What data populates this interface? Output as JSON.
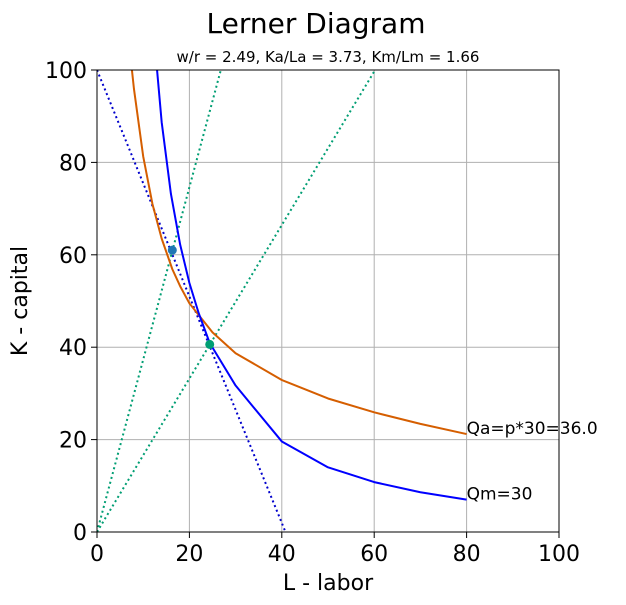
{
  "chart_data": {
    "type": "line",
    "title": "Lerner Diagram",
    "subtitle": "w/r = 2.49,   Ka/La = 3.73,   Km/Lm = 1.66",
    "xlabel": "L - labor",
    "ylabel": "K - capital",
    "xlim": [
      0,
      100
    ],
    "ylim": [
      0,
      100
    ],
    "xticks": [
      0,
      20,
      40,
      60,
      80,
      100
    ],
    "yticks": [
      0,
      20,
      40,
      60,
      80,
      100
    ],
    "grid": true,
    "series": [
      {
        "name": "Qa=p*30=36.0",
        "style": "solid",
        "color": "#d55e00",
        "x": [
          7.56,
          8,
          10,
          12,
          14,
          16.3,
          18,
          20,
          25,
          30,
          40,
          50,
          60,
          70,
          80
        ],
        "y": [
          100,
          95.9,
          81.3,
          71.0,
          63.5,
          56.9,
          53.2,
          49.5,
          43.2,
          38.7,
          32.9,
          28.9,
          25.9,
          23.4,
          21.2
        ]
      },
      {
        "name": "Qm=30",
        "style": "solid",
        "color": "#0000ff",
        "x": [
          13.0,
          14,
          16,
          18,
          20,
          22,
          24.4,
          30,
          40,
          50,
          60,
          70,
          80
        ],
        "y": [
          100,
          88.7,
          73.2,
          62.2,
          53.9,
          47.4,
          40.9,
          31.7,
          19.6,
          14.0,
          10.8,
          8.6,
          7.0
        ]
      }
    ],
    "lines": [
      {
        "kind": "isocost",
        "style": "dotted",
        "color": "#0000cc",
        "x": [
          0,
          40.8
        ],
        "y": [
          100,
          0
        ]
      },
      {
        "kind": "ray",
        "style": "dotted",
        "color": "#009e73",
        "x": [
          0,
          26.8
        ],
        "y": [
          0,
          100
        ]
      },
      {
        "kind": "ray",
        "style": "dotted",
        "color": "#009e73",
        "x": [
          0,
          60.2
        ],
        "y": [
          0,
          100
        ]
      }
    ],
    "points": [
      {
        "x": 16.3,
        "y": 61.0,
        "color": "#1f77b4"
      },
      {
        "x": 24.4,
        "y": 40.6,
        "color": "#009e73"
      }
    ],
    "annotations": [
      {
        "text": "Qa=p*30=36.0",
        "x": 80,
        "y": 21.2
      },
      {
        "text": "Qm=30",
        "x": 80,
        "y": 7.0
      }
    ]
  },
  "colors": {
    "grid": "#b0b0b0",
    "axis": "#000000"
  }
}
